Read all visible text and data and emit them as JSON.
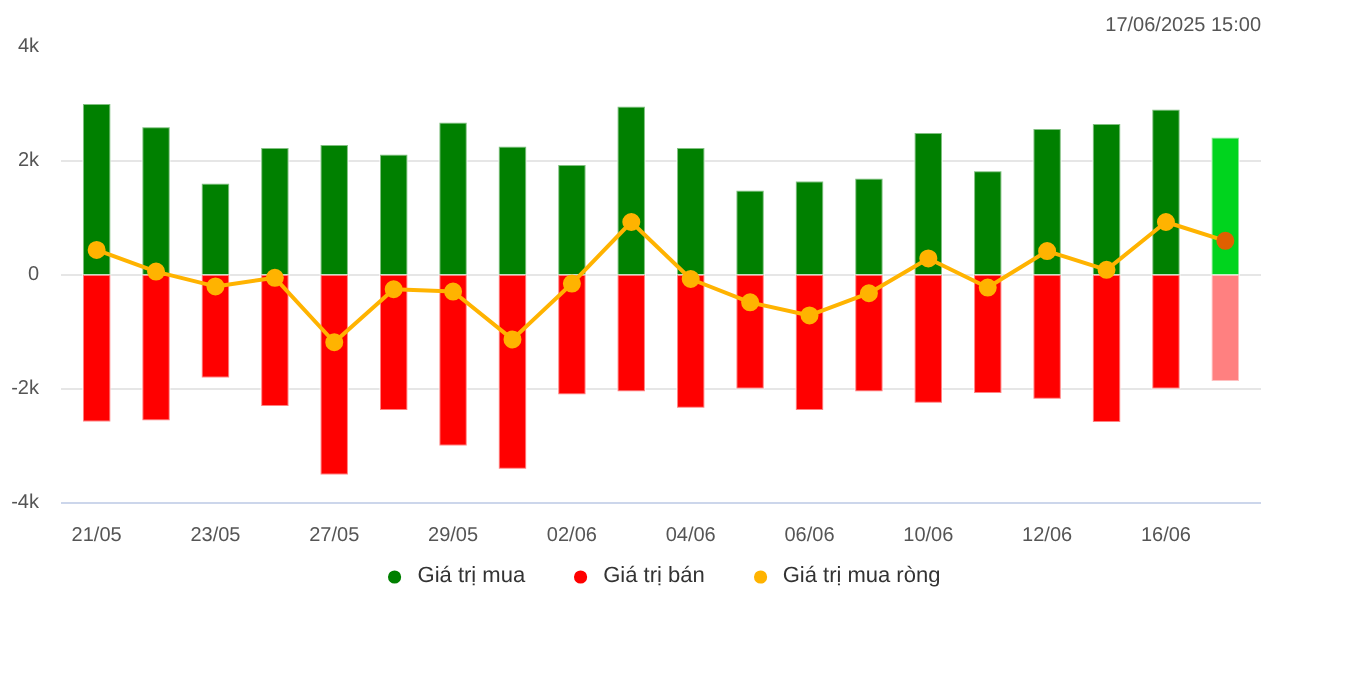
{
  "chart_data": {
    "type": "bar",
    "stacked": true,
    "categories": [
      "21/05",
      null,
      "23/05",
      null,
      "27/05",
      null,
      "29/05",
      null,
      "02/06",
      null,
      "04/06",
      null,
      "06/06",
      null,
      "10/06",
      null,
      "12/06",
      null,
      "16/06",
      null
    ],
    "series": [
      {
        "name": "Giá trị mua",
        "color": "#008000",
        "colors": [
          "#008000",
          "#008000",
          "#008000",
          "#008000",
          "#008000",
          "#008000",
          "#008000",
          "#008000",
          "#008000",
          "#008000",
          "#008000",
          "#008000",
          "#008000",
          "#008000",
          "#008000",
          "#008000",
          "#008000",
          "#008000",
          "#008000",
          "#00d41e"
        ],
        "values": [
          3000,
          2590,
          1600,
          2230,
          2280,
          2110,
          2670,
          2250,
          1930,
          2950,
          2230,
          1480,
          1640,
          1690,
          2490,
          1820,
          2560,
          2650,
          2900,
          2410
        ]
      },
      {
        "name": "Giá trị bán",
        "color": "#ff0000",
        "colors": [
          "#ff0000",
          "#ff0000",
          "#ff0000",
          "#ff0000",
          "#ff0000",
          "#ff0000",
          "#ff0000",
          "#ff0000",
          "#ff0000",
          "#ff0000",
          "#ff0000",
          "#ff0000",
          "#ff0000",
          "#ff0000",
          "#ff0000",
          "#ff0000",
          "#ff0000",
          "#ff0000",
          "#ff0000",
          "#ff8080"
        ],
        "values": [
          -2570,
          -2550,
          -1800,
          -2300,
          -3500,
          -2370,
          -2990,
          -3400,
          -2090,
          -2040,
          -2330,
          -1990,
          -2370,
          -2040,
          -2240,
          -2070,
          -2170,
          -2580,
          -1990,
          -1860
        ]
      },
      {
        "name": "Giá trị mua ròng",
        "type": "line",
        "color": "#ffb300",
        "colors": [
          "#ffb300",
          "#ffb300",
          "#ffb300",
          "#ffb300",
          "#ffb300",
          "#ffb300",
          "#ffb300",
          "#ffb300",
          "#ffb300",
          "#ffb300",
          "#ffb300",
          "#ffb300",
          "#ffb300",
          "#ffb300",
          "#ffb300",
          "#ffb300",
          "#ffb300",
          "#ffb300",
          "#ffb300",
          "#e06000"
        ],
        "values": [
          440,
          60,
          -200,
          -50,
          -1180,
          -250,
          -290,
          -1130,
          -150,
          930,
          -70,
          -480,
          -710,
          -320,
          290,
          -220,
          420,
          90,
          930,
          600
        ]
      }
    ],
    "ylim": [
      -4000,
      4000
    ],
    "yticks": [
      {
        "value": -4000,
        "label": "-4k"
      },
      {
        "value": -2000,
        "label": "-2k"
      },
      0,
      {
        "value": 2000,
        "label": "2k"
      },
      {
        "value": 4000,
        "label": "4k"
      }
    ],
    "grid": "y",
    "legend": "bottom",
    "marker": "circle",
    "annotations": [
      "17/06/2025 15:00"
    ]
  }
}
